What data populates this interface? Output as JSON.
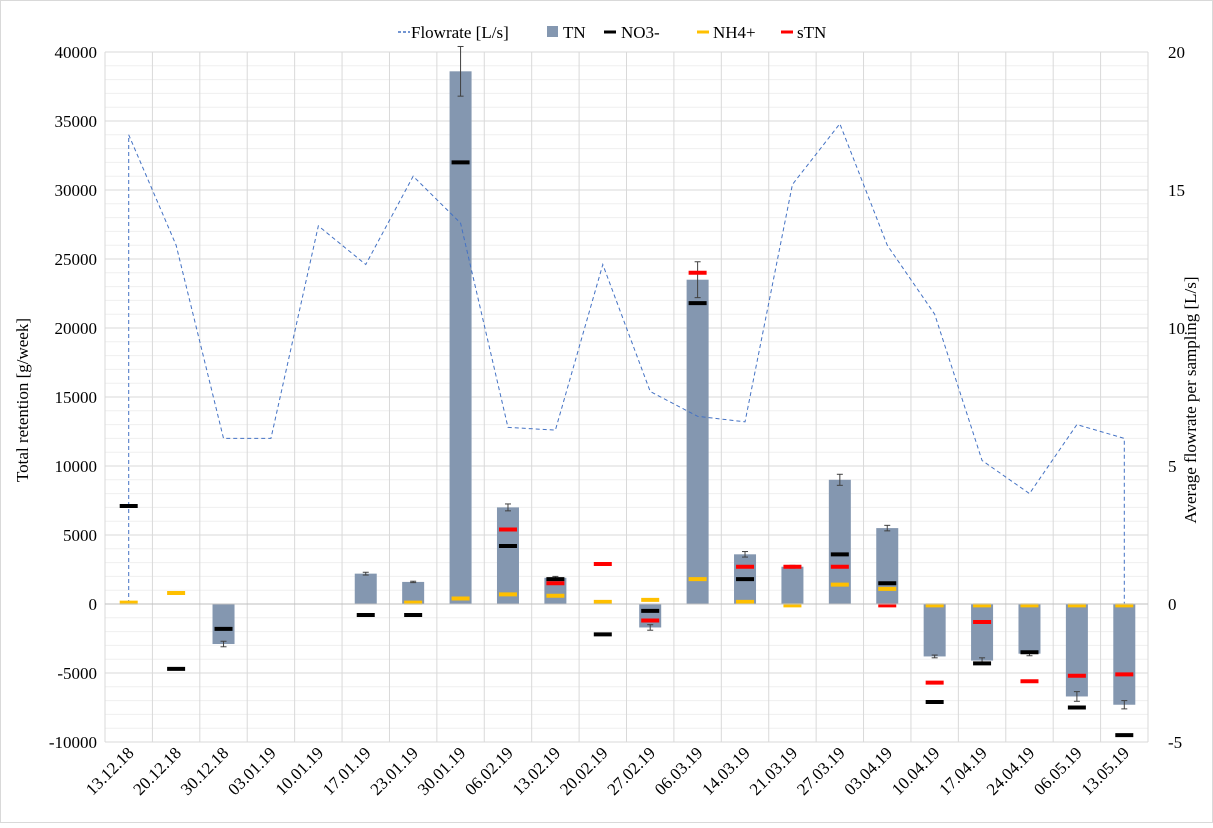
{
  "chart_data": {
    "type": "bar",
    "title": "",
    "categories": [
      "13.12.18",
      "20.12.18",
      "30.12.18",
      "03.01.19",
      "10.01.19",
      "17.01.19",
      "23.01.19",
      "30.01.19",
      "06.02.19",
      "13.02.19",
      "20.02.19",
      "27.02.19",
      "06.03.19",
      "14.03.19",
      "21.03.19",
      "27.03.19",
      "03.04.19",
      "10.04.19",
      "17.04.19",
      "24.04.19",
      "06.05.19",
      "13.05.19"
    ],
    "ylabel": "Total retention [g/week]",
    "y2label": "Average flowrate per sampling [L/s]",
    "ylim": [
      -10000,
      40000
    ],
    "y2lim": [
      -5,
      20
    ],
    "yticks": [
      -10000,
      -5000,
      0,
      5000,
      10000,
      15000,
      20000,
      25000,
      30000,
      35000,
      40000
    ],
    "y2ticks": [
      -5,
      0,
      5,
      10,
      15,
      20
    ],
    "grid": true,
    "legend_position": "top",
    "legend": [
      "Flowrate [L/s]",
      "TN",
      "NO3-",
      "NH4+",
      "sTN"
    ],
    "series": [
      {
        "name": "Flowrate [L/s]",
        "kind": "line",
        "axis": "right",
        "color": "#4472C4",
        "values": [
          17.0,
          13.0,
          6.0,
          6.0,
          13.7,
          12.3,
          15.5,
          13.8,
          6.4,
          6.3,
          12.3,
          7.7,
          6.8,
          6.6,
          15.2,
          17.4,
          13.0,
          10.5,
          5.2,
          4.0,
          6.5,
          6.0
        ]
      },
      {
        "name": "TN",
        "kind": "bar",
        "axis": "left",
        "color": "#8497B0",
        "values": [
          null,
          null,
          -2900,
          null,
          null,
          2200,
          1600,
          38600,
          7000,
          1900,
          null,
          -1700,
          23500,
          3600,
          2700,
          9000,
          5500,
          -3800,
          -4100,
          -3600,
          -6700,
          -7300
        ],
        "errors": [
          null,
          null,
          200,
          null,
          null,
          100,
          50,
          1800,
          250,
          100,
          null,
          200,
          1300,
          200,
          100,
          400,
          200,
          100,
          200,
          150,
          350,
          300
        ]
      },
      {
        "name": "NO3-",
        "kind": "marker",
        "axis": "left",
        "color": "#000000",
        "values": [
          7100,
          -4700,
          -1800,
          null,
          null,
          -800,
          -800,
          32000,
          4200,
          1800,
          -2200,
          -500,
          21800,
          1800,
          null,
          3600,
          1500,
          -7100,
          -4300,
          -3500,
          -7500,
          -9500
        ]
      },
      {
        "name": "NH4+",
        "kind": "marker",
        "axis": "left",
        "color": "#FFC000",
        "values": [
          100,
          800,
          null,
          null,
          null,
          null,
          100,
          400,
          700,
          600,
          150,
          300,
          1800,
          150,
          -100,
          1400,
          1100,
          -100,
          -100,
          -100,
          -100,
          -100
        ]
      },
      {
        "name": "sTN",
        "kind": "marker",
        "axis": "left",
        "color": "#FF0000",
        "values": [
          null,
          null,
          null,
          null,
          null,
          null,
          null,
          null,
          5400,
          1500,
          2900,
          -1200,
          24000,
          2700,
          2700,
          2700,
          -100,
          -5700,
          -1300,
          -5600,
          -5200,
          -5100
        ]
      }
    ]
  }
}
